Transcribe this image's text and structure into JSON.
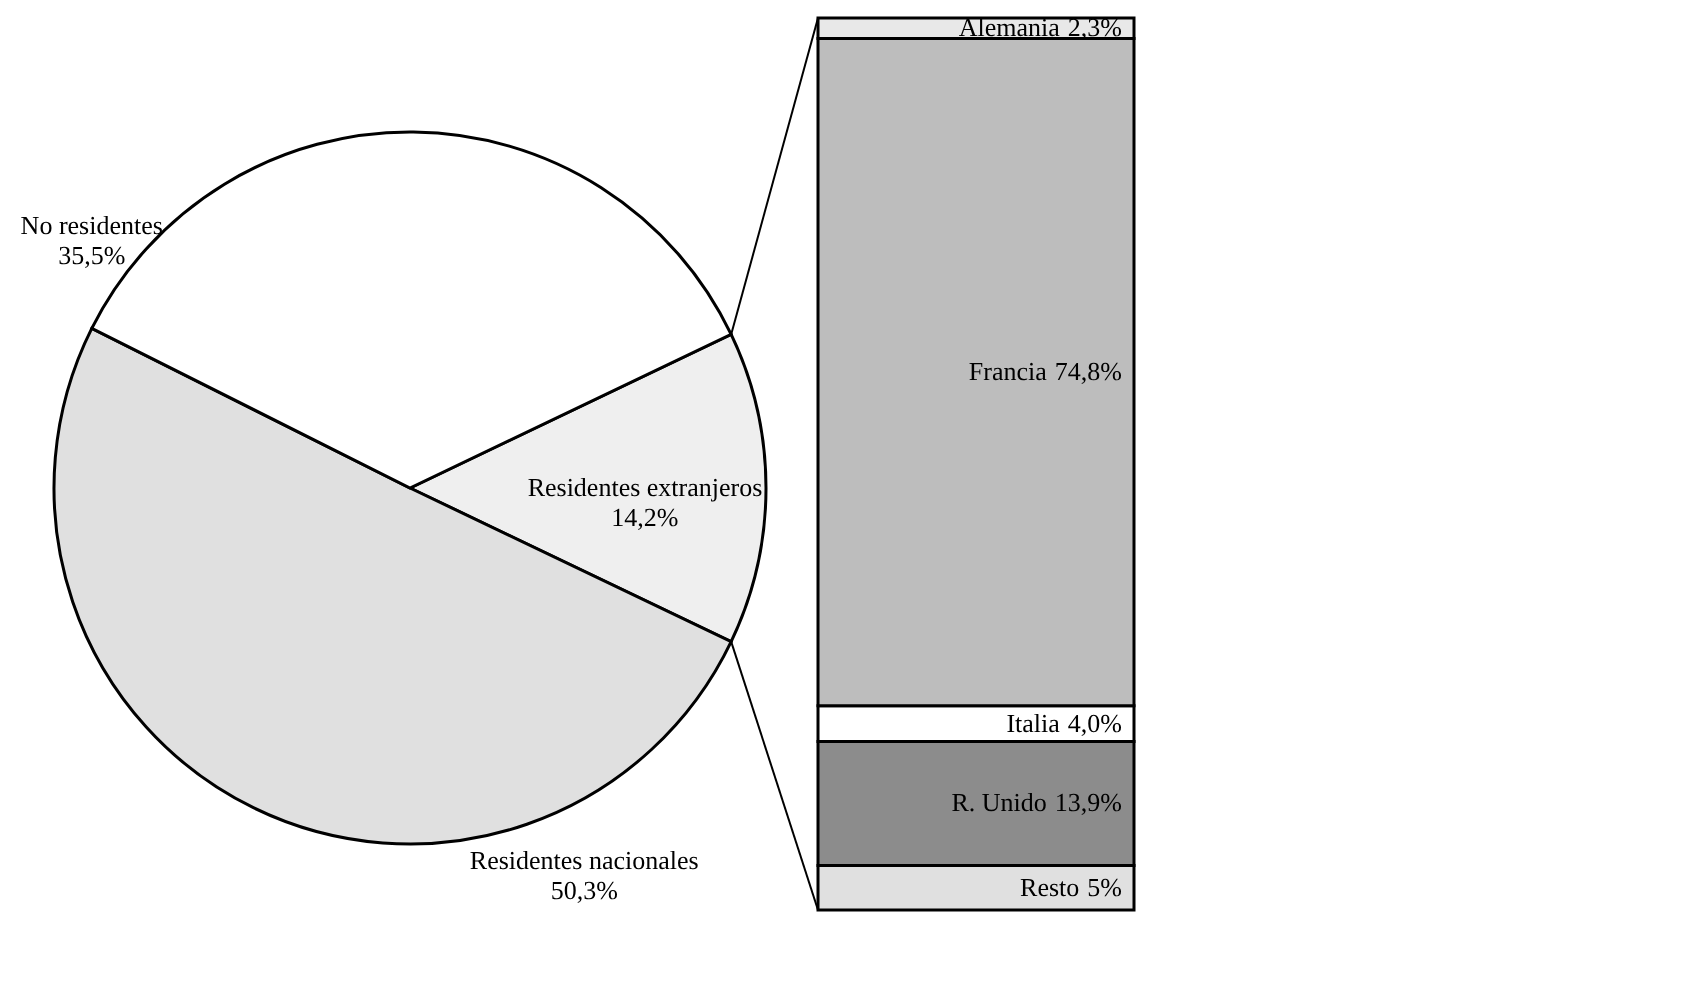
{
  "chart_data": [
    {
      "type": "pie",
      "categories": [
        "Residentes extranjeros",
        "Residentes nacionales",
        "No residentes"
      ],
      "values": [
        14.2,
        50.3,
        35.5
      ],
      "value_labels": [
        "14,2%",
        "50,3%",
        "35,5%"
      ],
      "colors": [
        "#efefef",
        "#e0e0e0",
        "#ffffff"
      ]
    },
    {
      "type": "bar",
      "stacked": true,
      "categories": [
        null
      ],
      "series": [
        {
          "name": "Resto",
          "color": "#e0e0e0",
          "values": [
            5
          ],
          "value_labels": [
            "5%"
          ]
        },
        {
          "name": "R. Unido",
          "color": "#8c8c8c",
          "values": [
            13.9
          ],
          "value_labels": [
            "13,9%"
          ]
        },
        {
          "name": "Italia",
          "color": "#ffffff",
          "values": [
            4.0
          ],
          "value_labels": [
            "4,0%"
          ]
        },
        {
          "name": "Francia",
          "color": "#bdbdbd",
          "values": [
            74.8
          ],
          "value_labels": [
            "74,8%"
          ]
        },
        {
          "name": "Alemania",
          "color": "#e8e8e8",
          "values": [
            2.3
          ],
          "value_labels": [
            "2,3%"
          ]
        }
      ]
    }
  ]
}
